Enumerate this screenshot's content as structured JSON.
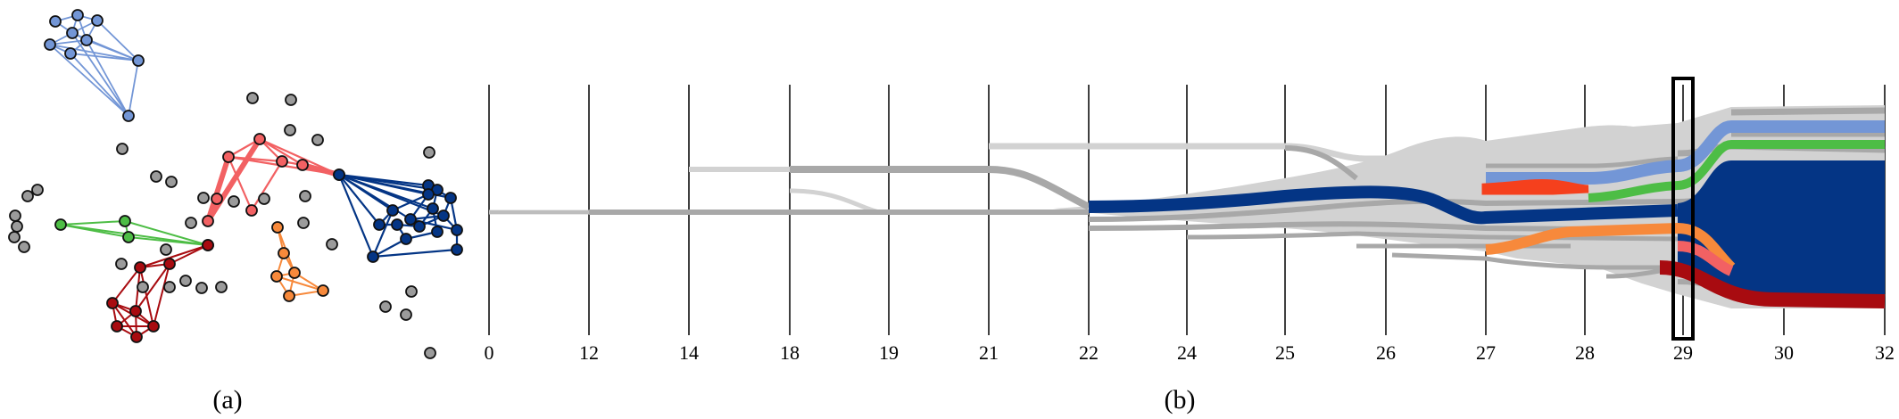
{
  "captions": {
    "a": "(a)",
    "b": "(b)"
  },
  "colors": {
    "blue_light": "#7396d6",
    "red_light": "#f26163",
    "green": "#4dbd45",
    "navy": "#043585",
    "orange": "#f7893b",
    "dark_red": "#a80b10",
    "red_orange": "#f5401d",
    "node_gray": "#9b9b9b",
    "flow_gray_light": "#d2d2d2",
    "flow_gray_mid": "#a8a8a8"
  },
  "timeline": {
    "ticks": [
      "0",
      "12",
      "14",
      "18",
      "19",
      "21",
      "22",
      "24",
      "25",
      "26",
      "27",
      "28",
      "29",
      "30",
      "32"
    ],
    "highlighted_tick": "29"
  },
  "network": {
    "clusters": [
      {
        "name": "blue-light",
        "color": "#7396d6"
      },
      {
        "name": "red-light",
        "color": "#f26163"
      },
      {
        "name": "green",
        "color": "#4dbd45"
      },
      {
        "name": "navy",
        "color": "#043585"
      },
      {
        "name": "orange",
        "color": "#f7893b"
      },
      {
        "name": "dark-red",
        "color": "#a80b10"
      }
    ]
  }
}
